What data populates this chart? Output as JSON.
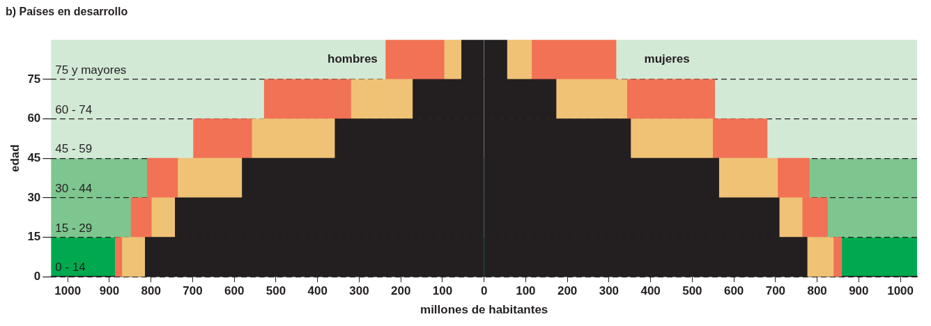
{
  "chart_data": {
    "type": "bar",
    "title": "b) Países en desarrollo",
    "xlabel": "millones de habitantes",
    "y2label": "edad",
    "orientation": "horizontal",
    "stacked": true,
    "legend": false,
    "grid": "y",
    "categories": [
      "75 y mayores",
      "60 - 74",
      "45 - 59",
      "30 - 44",
      "15 - 29",
      "0 - 14"
    ],
    "series": [
      {
        "color": "#231f20",
        "values": [
          -54,
          -171,
          -358,
          -581,
          -742,
          -814
        ]
      },
      {
        "color": "#f0c275",
        "values": [
          -41,
          -148,
          -199,
          -154,
          -56,
          -55
        ]
      },
      {
        "color": "#f27255",
        "values": [
          -141,
          -209,
          -141,
          -74,
          -50,
          -17
        ]
      },
      {
        "color": "#231f20",
        "values": [
          55,
          173,
          352,
          564,
          709,
          776
        ]
      },
      {
        "color": "#f0c275",
        "values": [
          59,
          170,
          197,
          141,
          55,
          63
        ]
      },
      {
        "color": "#f27255",
        "values": [
          203,
          211,
          131,
          76,
          61,
          20
        ]
      }
    ],
    "xlim": [
      -1040,
      1040
    ],
    "xticks": [
      {
        "value": -1000,
        "label": "1000"
      },
      {
        "value": -900,
        "label": "900"
      },
      {
        "value": -800,
        "label": "800"
      },
      {
        "value": -700,
        "label": "700"
      },
      {
        "value": -600,
        "label": "600"
      },
      {
        "value": -500,
        "label": "500"
      },
      {
        "value": -400,
        "label": "400"
      },
      {
        "value": -300,
        "label": "300"
      },
      {
        "value": -200,
        "label": "200"
      },
      {
        "value": -100,
        "label": "100"
      },
      0,
      100,
      200,
      300,
      400,
      500,
      600,
      700,
      800,
      900,
      1000
    ],
    "y2lim": [
      0,
      90
    ],
    "y2ticks": [
      0,
      15,
      30,
      45,
      60,
      75
    ],
    "bands": [
      {
        "axis": "y2",
        "from": 0,
        "to": 15,
        "color": "#00a94f"
      },
      {
        "axis": "y2",
        "from": 15,
        "to": 45,
        "color": "#7dc68f"
      },
      {
        "axis": "y2",
        "from": 45,
        "to": 90,
        "color": "#d2e9d6"
      }
    ],
    "annotations": [
      "hombres",
      "mujeres"
    ]
  }
}
